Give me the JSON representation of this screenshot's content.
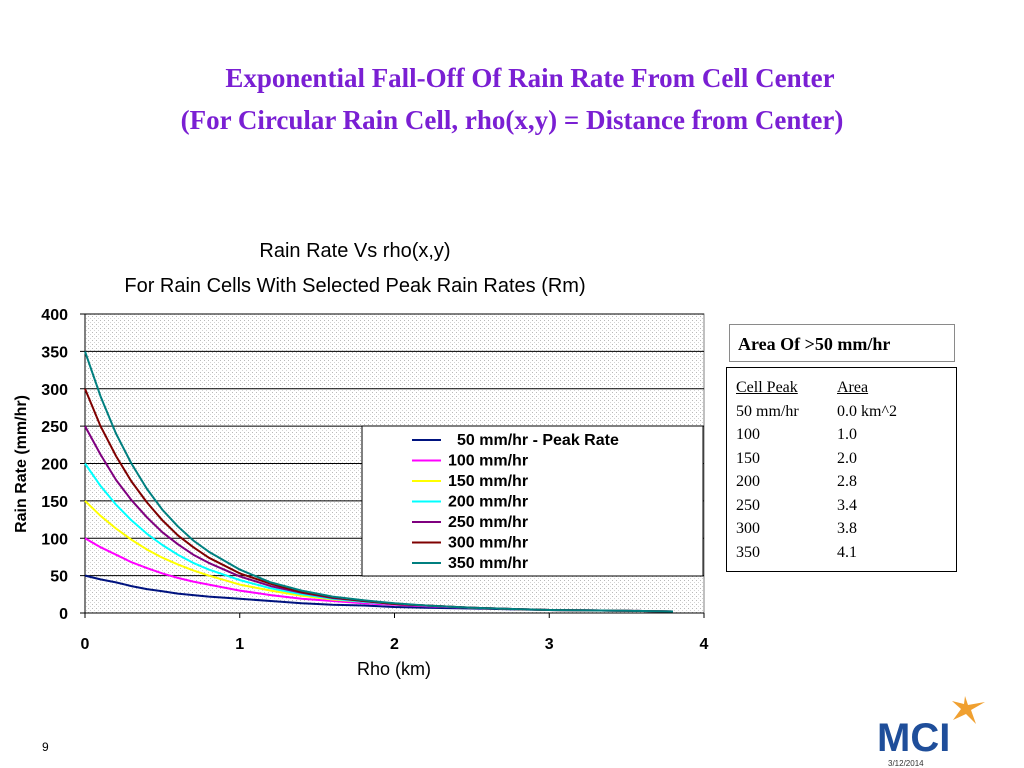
{
  "slide": {
    "title_line1": "Exponential Fall-Off Of Rain Rate From Cell Center",
    "title_line2": "(For Circular Rain Cell, rho(x,y) = Distance from Center)",
    "page_number": "9",
    "date": "3/12/2014",
    "logo_text": "MCI"
  },
  "area_panel": {
    "title": "Area Of >50 mm/hr",
    "header": [
      "Cell Peak",
      "Area"
    ],
    "rows": [
      [
        "50 mm/hr",
        "0.0 km^2"
      ],
      [
        "100",
        "1.0"
      ],
      [
        "150",
        "2.0"
      ],
      [
        "200",
        "2.8"
      ],
      [
        "250",
        "3.4"
      ],
      [
        "300",
        "3.8"
      ],
      [
        "350",
        "4.1"
      ]
    ]
  },
  "colors": {
    "title": "#7a1fd3",
    "logo_blue": "#1f4e9a",
    "logo_orange": "#f0a030"
  },
  "chart_data": {
    "type": "line",
    "title": "Rain Rate Vs rho(x,y)",
    "subtitle": "For Rain Cells With Selected Peak Rain Rates (Rm)",
    "xlabel": "Rho (km)",
    "ylabel": "Rain Rate (mm/hr)",
    "xlim": [
      0,
      4
    ],
    "ylim": [
      0,
      400
    ],
    "xticks": [
      0,
      1,
      2,
      3,
      4
    ],
    "yticks": [
      0,
      50,
      100,
      150,
      200,
      250,
      300,
      350,
      400
    ],
    "grid": "horizontal",
    "legend_position": "inside-right",
    "x": [
      0,
      0.1,
      0.2,
      0.3,
      0.4,
      0.5,
      0.6,
      0.7,
      0.8,
      1.0,
      1.2,
      1.4,
      1.6,
      1.8,
      2.0,
      2.2,
      2.5,
      3.0,
      3.5,
      3.8
    ],
    "series": [
      {
        "name": "50 mm/hr - Peak Rate",
        "color": "#00137f",
        "values": [
          50,
          45,
          41,
          36,
          32,
          29,
          26,
          24,
          22,
          19,
          16,
          13,
          11,
          10,
          8,
          7,
          6,
          4,
          3,
          2
        ]
      },
      {
        "name": "100 mm/hr",
        "color": "#ff00ff",
        "values": [
          100,
          88,
          78,
          68,
          60,
          53,
          47,
          42,
          38,
          30,
          24,
          19,
          16,
          13,
          11,
          9,
          7,
          4,
          3,
          2
        ]
      },
      {
        "name": "150 mm/hr",
        "color": "#ffff00",
        "values": [
          150,
          130,
          113,
          98,
          85,
          74,
          65,
          57,
          50,
          38,
          30,
          23,
          18,
          15,
          12,
          10,
          7,
          4,
          3,
          2
        ]
      },
      {
        "name": "200 mm/hr",
        "color": "#00ffff",
        "values": [
          200,
          170,
          145,
          124,
          106,
          91,
          78,
          67,
          58,
          44,
          33,
          25,
          19,
          15,
          12,
          10,
          7,
          4,
          3,
          2
        ]
      },
      {
        "name": "250 mm/hr",
        "color": "#7f007f",
        "values": [
          250,
          212,
          178,
          151,
          128,
          108,
          92,
          78,
          67,
          49,
          36,
          27,
          20,
          16,
          12,
          10,
          7,
          4,
          3,
          2
        ]
      },
      {
        "name": "300 mm/hr",
        "color": "#7f0000",
        "values": [
          300,
          250,
          210,
          176,
          148,
          124,
          104,
          88,
          74,
          53,
          39,
          28,
          21,
          16,
          12,
          10,
          7,
          4,
          3,
          2
        ]
      },
      {
        "name": "350 mm/hr",
        "color": "#007f7f",
        "values": [
          350,
          290,
          240,
          200,
          166,
          138,
          116,
          97,
          82,
          58,
          41,
          30,
          22,
          17,
          13,
          10,
          7,
          4,
          3,
          2
        ]
      }
    ]
  }
}
